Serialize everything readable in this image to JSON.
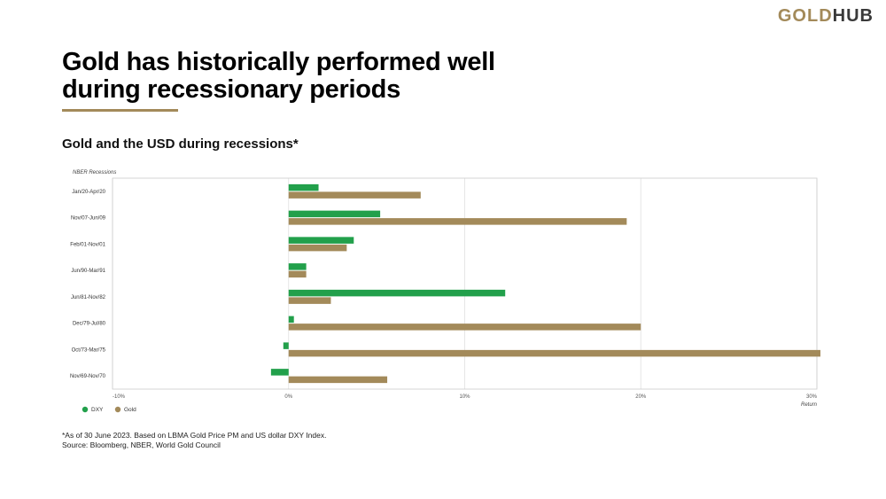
{
  "brand": {
    "logo_gold": "GOLD",
    "logo_hub": "HUB"
  },
  "title_line1": "Gold has historically performed well",
  "title_line2": "during recessionary periods",
  "subtitle": "Gold and the USD during recessions*",
  "footnote": {
    "line1": "*As of 30 June 2023. Based on LBMA Gold Price PM and US dollar DXY Index.",
    "line2": "Source: Bloomberg, NBER, World Gold Council"
  },
  "colors": {
    "dxy": "#22a04b",
    "gold": "#a38a5a",
    "gridline": "#e0e0e0",
    "axis": "#bbbbbb"
  },
  "chart_data": {
    "type": "bar",
    "orientation": "horizontal",
    "ylabel": "NBER Recessions",
    "xlabel": "Return",
    "xlim": [
      -10,
      30
    ],
    "xticks": [
      "-10%",
      "0%",
      "10%",
      "20%",
      "30%"
    ],
    "xtick_values": [
      -10,
      0,
      10,
      20,
      30
    ],
    "grid": true,
    "legend": "bottom-left",
    "categories": [
      "Jan/20-Apr/20",
      "Nov/07-Jun/09",
      "Feb/01-Nov/01",
      "Jun/90-Mar/91",
      "Jun/81-Nov/82",
      "Dec/79-Jul/80",
      "Oct/73-Mar/75",
      "Nov/69-Nov/70"
    ],
    "series": [
      {
        "name": "DXY",
        "color": "#22a04b",
        "values": [
          1.7,
          5.2,
          3.7,
          1.0,
          12.3,
          0.3,
          -0.3,
          -1.0
        ]
      },
      {
        "name": "Gold",
        "color": "#a38a5a",
        "values": [
          7.5,
          19.2,
          3.3,
          1.0,
          2.4,
          20.0,
          30.2,
          5.6
        ]
      }
    ]
  }
}
